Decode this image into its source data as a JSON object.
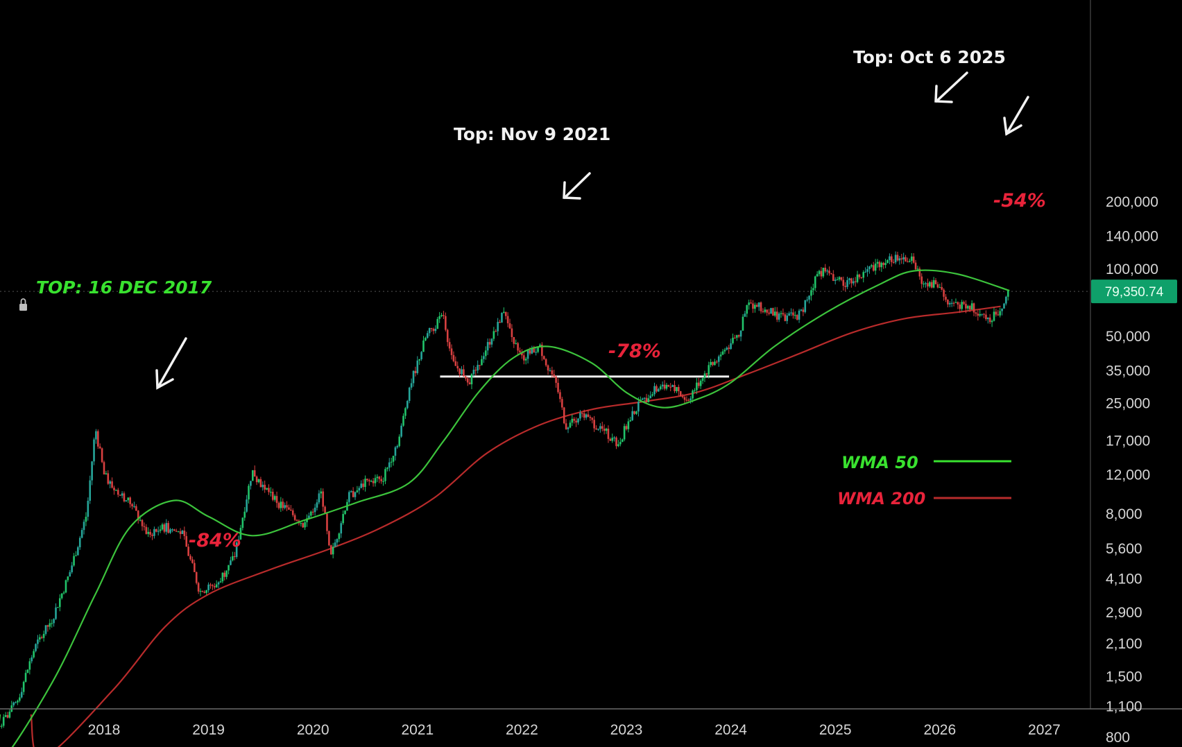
{
  "chart_data": {
    "type": "candlestick",
    "y_scale": "log",
    "ylim": [
      650,
      260000
    ],
    "x_range": [
      "2017-01",
      "2027-08"
    ],
    "y_ticks": [
      {
        "v": 200000,
        "label": "200,000"
      },
      {
        "v": 140000,
        "label": "140,000"
      },
      {
        "v": 100000,
        "label": "100,000"
      },
      {
        "v": 50000,
        "label": "50,000"
      },
      {
        "v": 35000,
        "label": "35,000"
      },
      {
        "v": 25000,
        "label": "25,000"
      },
      {
        "v": 17000,
        "label": "17,000"
      },
      {
        "v": 12000,
        "label": "12,000"
      },
      {
        "v": 8000,
        "label": "8,000"
      },
      {
        "v": 5600,
        "label": "5,600"
      },
      {
        "v": 4100,
        "label": "4,100"
      },
      {
        "v": 2900,
        "label": "2,900"
      },
      {
        "v": 2100,
        "label": "2,100"
      },
      {
        "v": 1500,
        "label": "1,500"
      },
      {
        "v": 1100,
        "label": "1,100"
      },
      {
        "v": 800,
        "label": "800"
      }
    ],
    "x_ticks": [
      "2018",
      "2019",
      "2020",
      "2021",
      "2022",
      "2023",
      "2024",
      "2025",
      "2026",
      "2027"
    ],
    "price_series": [
      [
        "2017-01",
        900
      ],
      [
        "2017-03",
        1150
      ],
      [
        "2017-05",
        2000
      ],
      [
        "2017-07",
        2700
      ],
      [
        "2017-09",
        4300
      ],
      [
        "2017-11",
        8000
      ],
      [
        "2017-12",
        19500
      ],
      [
        "2018-01",
        12000
      ],
      [
        "2018-02",
        10500
      ],
      [
        "2018-04",
        9000
      ],
      [
        "2018-06",
        6500
      ],
      [
        "2018-08",
        7000
      ],
      [
        "2018-10",
        6500
      ],
      [
        "2018-12",
        3600
      ],
      [
        "2019-02",
        3900
      ],
      [
        "2019-04",
        5200
      ],
      [
        "2019-06",
        12500
      ],
      [
        "2019-07",
        11000
      ],
      [
        "2019-09",
        9000
      ],
      [
        "2019-12",
        7200
      ],
      [
        "2020-02",
        10000
      ],
      [
        "2020-03",
        5000
      ],
      [
        "2020-05",
        9500
      ],
      [
        "2020-07",
        11000
      ],
      [
        "2020-09",
        11500
      ],
      [
        "2020-11",
        18000
      ],
      [
        "2020-12",
        29000
      ],
      [
        "2021-02",
        50000
      ],
      [
        "2021-04",
        62000
      ],
      [
        "2021-05",
        38000
      ],
      [
        "2021-07",
        32000
      ],
      [
        "2021-09",
        45000
      ],
      [
        "2021-11",
        67000
      ],
      [
        "2021-12",
        47000
      ],
      [
        "2022-01",
        40000
      ],
      [
        "2022-03",
        45000
      ],
      [
        "2022-05",
        30000
      ],
      [
        "2022-06",
        20000
      ],
      [
        "2022-08",
        22000
      ],
      [
        "2022-10",
        19500
      ],
      [
        "2022-12",
        16500
      ],
      [
        "2023-02",
        23500
      ],
      [
        "2023-04",
        28500
      ],
      [
        "2023-06",
        30000
      ],
      [
        "2023-08",
        26000
      ],
      [
        "2023-10",
        34000
      ],
      [
        "2023-12",
        42000
      ],
      [
        "2024-02",
        52000
      ],
      [
        "2024-03",
        70000
      ],
      [
        "2024-05",
        66000
      ],
      [
        "2024-07",
        60000
      ],
      [
        "2024-09",
        63000
      ],
      [
        "2024-11",
        96000
      ],
      [
        "2024-12",
        98000
      ],
      [
        "2025-02",
        84000
      ],
      [
        "2025-04",
        94000
      ],
      [
        "2025-06",
        107000
      ],
      [
        "2025-08",
        113000
      ],
      [
        "2025-10",
        110000
      ],
      [
        "2025-11",
        88000
      ],
      [
        "2026-01",
        85000
      ],
      [
        "2026-02",
        68000
      ],
      [
        "2026-04",
        70000
      ],
      [
        "2026-05",
        66000
      ],
      [
        "2026-07",
        60000
      ],
      [
        "2026-08",
        67000
      ],
      [
        "2026-09",
        79350
      ]
    ],
    "series": [
      {
        "name": "WMA 50",
        "color": "#3cc33c",
        "values": [
          [
            "2017-01",
            620
          ],
          [
            "2017-07",
            1400
          ],
          [
            "2017-12",
            3500
          ],
          [
            "2018-04",
            7000
          ],
          [
            "2018-09",
            9200
          ],
          [
            "2019-01",
            7800
          ],
          [
            "2019-06",
            6400
          ],
          [
            "2019-12",
            7500
          ],
          [
            "2020-06",
            9000
          ],
          [
            "2020-12",
            11000
          ],
          [
            "2021-04",
            17000
          ],
          [
            "2021-08",
            28000
          ],
          [
            "2021-12",
            40000
          ],
          [
            "2022-04",
            45000
          ],
          [
            "2022-09",
            38000
          ],
          [
            "2023-01",
            28000
          ],
          [
            "2023-05",
            24000
          ],
          [
            "2023-09",
            26000
          ],
          [
            "2024-01",
            31000
          ],
          [
            "2024-06",
            45000
          ],
          [
            "2024-12",
            64000
          ],
          [
            "2025-06",
            85000
          ],
          [
            "2025-10",
            98000
          ],
          [
            "2026-03",
            95000
          ],
          [
            "2026-09",
            80000
          ]
        ]
      },
      {
        "name": "WMA 200",
        "color": "#b82b2b",
        "values": [
          [
            "2017-06",
            650
          ],
          [
            "2018-02",
            1300
          ],
          [
            "2018-08",
            2500
          ],
          [
            "2019-01",
            3500
          ],
          [
            "2019-08",
            4500
          ],
          [
            "2020-03",
            5600
          ],
          [
            "2020-09",
            7000
          ],
          [
            "2021-03",
            9500
          ],
          [
            "2021-09",
            15000
          ],
          [
            "2022-03",
            20000
          ],
          [
            "2022-09",
            23500
          ],
          [
            "2023-03",
            25500
          ],
          [
            "2023-09",
            28000
          ],
          [
            "2024-03",
            34000
          ],
          [
            "2024-09",
            42000
          ],
          [
            "2025-03",
            52000
          ],
          [
            "2025-09",
            60000
          ],
          [
            "2026-03",
            64000
          ],
          [
            "2026-08",
            68000
          ]
        ]
      }
    ],
    "support_line": {
      "value": 33000,
      "from": "2021-04",
      "to": "2023-12"
    },
    "current_price": {
      "label": "79,350.74",
      "value": 79350.74
    },
    "annotations": [
      {
        "text": "TOP: 16 DEC 2017",
        "style": "green"
      },
      {
        "text": "Top: Nov 9 2021",
        "style": "white"
      },
      {
        "text": "Top: Oct 6 2025",
        "style": "white"
      },
      {
        "text": "-84%",
        "style": "red"
      },
      {
        "text": "-78%",
        "style": "red"
      },
      {
        "text": "-54%",
        "style": "red"
      }
    ],
    "legend": {
      "position": "right-middle",
      "items": [
        {
          "name": "WMA 50",
          "color": "#39e22f"
        },
        {
          "name": "WMA 200",
          "color": "#e8233a"
        }
      ]
    },
    "colors": {
      "up": "#26a69a",
      "up_bright": "#21c46a",
      "down": "#d84040",
      "background": "#000000",
      "axis_text": "#d6d6d6",
      "price_label_bg": "#0fa06a"
    }
  }
}
